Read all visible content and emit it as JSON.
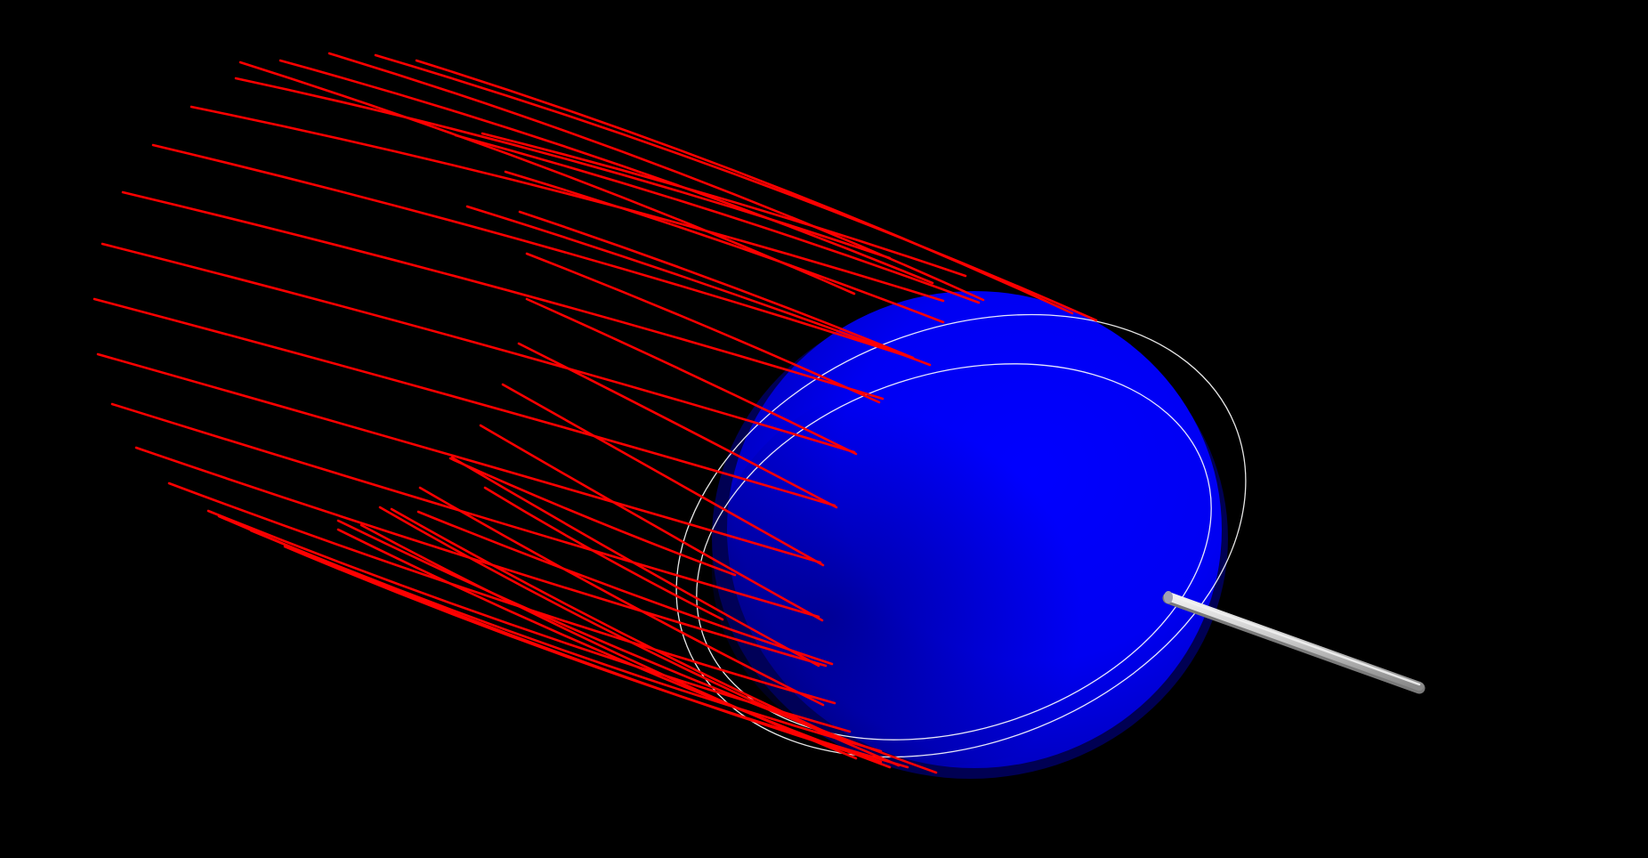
{
  "scene": {
    "background_color": "#000000",
    "sphere": {
      "label": "blue-sphere",
      "color": "#0000ff",
      "shadow_color": "#00008a"
    },
    "field_lines": {
      "label": "field-lines",
      "color": "#ff0000",
      "count": 39
    },
    "rings": {
      "label": "orbit-rings",
      "color": "#ffffff",
      "count": 2
    },
    "rod": {
      "label": "gray-rod",
      "color": "#c8c8c8"
    }
  }
}
